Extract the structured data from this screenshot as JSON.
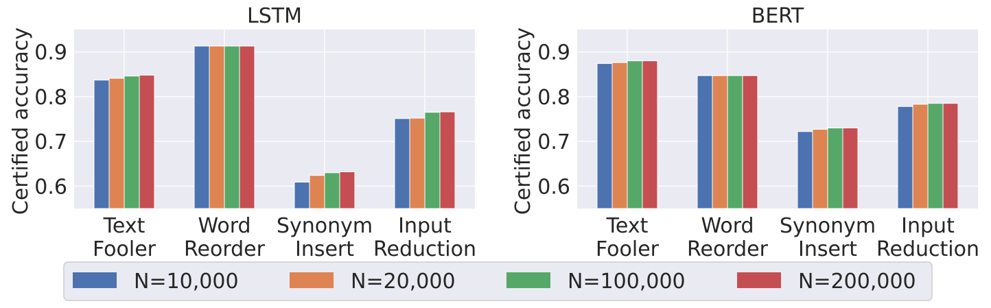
{
  "chart_data": [
    {
      "type": "bar",
      "title": "LSTM",
      "ylabel": "Certified accuracy",
      "xlabel": "",
      "categories": [
        [
          "Text",
          "Fooler"
        ],
        [
          "Word",
          "Reorder"
        ],
        [
          "Synonym",
          "Insert"
        ],
        [
          "Input",
          "Reduction"
        ]
      ],
      "ylim": [
        0.55,
        0.95
      ],
      "yticks": [
        "0.6",
        "0.7",
        "0.8",
        "0.9"
      ],
      "grid": true,
      "series": [
        {
          "name": "N=10,000",
          "values": [
            0.837,
            0.913,
            0.609,
            0.751
          ]
        },
        {
          "name": "N=20,000",
          "values": [
            0.841,
            0.913,
            0.624,
            0.752
          ]
        },
        {
          "name": "N=100,000",
          "values": [
            0.846,
            0.913,
            0.63,
            0.765
          ]
        },
        {
          "name": "N=200,000",
          "values": [
            0.848,
            0.913,
            0.632,
            0.766
          ]
        }
      ]
    },
    {
      "type": "bar",
      "title": "BERT",
      "ylabel": "Certified accuracy",
      "xlabel": "",
      "categories": [
        [
          "Text",
          "Fooler"
        ],
        [
          "Word",
          "Reorder"
        ],
        [
          "Synonym",
          "Insert"
        ],
        [
          "Input",
          "Reduction"
        ]
      ],
      "ylim": [
        0.55,
        0.95
      ],
      "yticks": [
        "0.6",
        "0.7",
        "0.8",
        "0.9"
      ],
      "grid": true,
      "series": [
        {
          "name": "N=10,000",
          "values": [
            0.874,
            0.847,
            0.722,
            0.778
          ]
        },
        {
          "name": "N=20,000",
          "values": [
            0.876,
            0.847,
            0.727,
            0.783
          ]
        },
        {
          "name": "N=100,000",
          "values": [
            0.88,
            0.847,
            0.73,
            0.785
          ]
        },
        {
          "name": "N=200,000",
          "values": [
            0.88,
            0.847,
            0.73,
            0.785
          ]
        }
      ]
    }
  ],
  "legend": {
    "placement": "bottom",
    "items": [
      "N=10,000",
      "N=20,000",
      "N=100,000",
      "N=200,000"
    ]
  },
  "colors": {
    "series": [
      "#4c72b0",
      "#dd8452",
      "#55a868",
      "#c44e52"
    ],
    "plot_background": "#eaeaf2",
    "grid": "#ffffff",
    "text": "#262626"
  }
}
